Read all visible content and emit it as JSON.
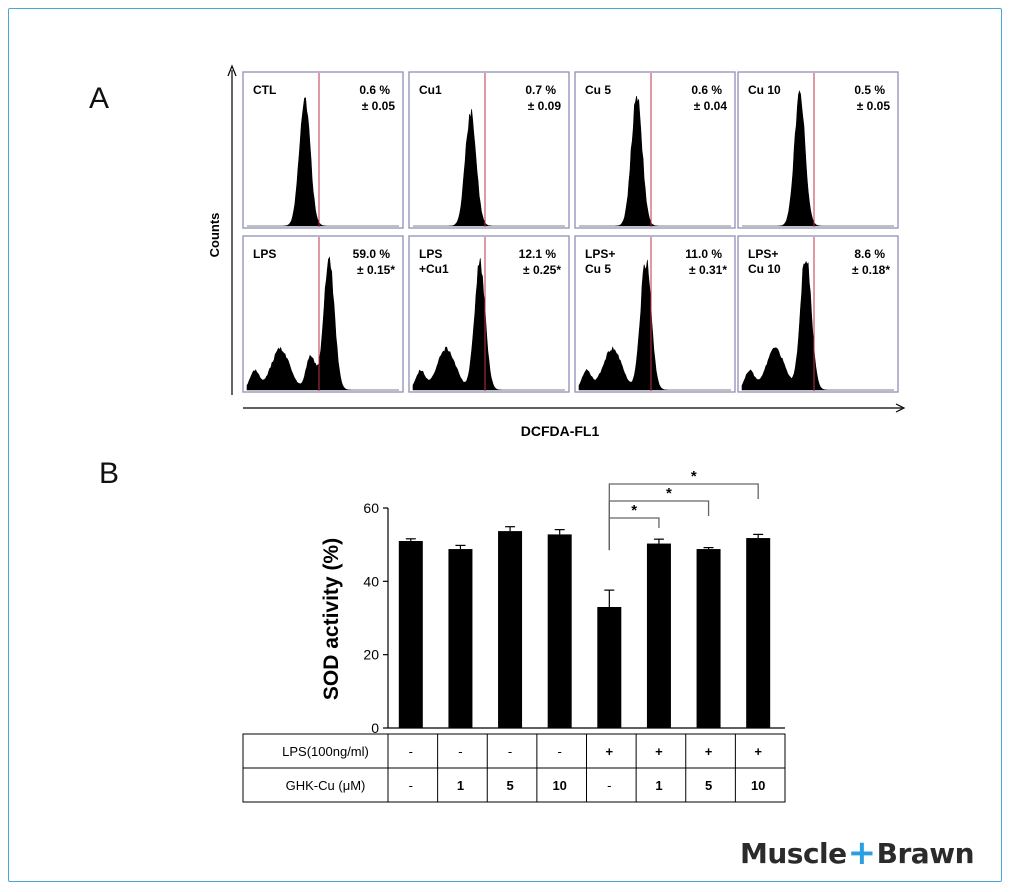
{
  "panels": {
    "a_label": "A",
    "b_label": "B"
  },
  "histograms": {
    "y_label": "Counts",
    "x_label": "DCFDA-FL1",
    "plots": [
      {
        "name": "CTL",
        "name2": "",
        "pct": "0.6 %",
        "err": "± 0.05",
        "peak_pos": 0.38,
        "peak_h": 0.82,
        "bimodal": false
      },
      {
        "name": "Cu1",
        "name2": "",
        "pct": "0.7 %",
        "err": "± 0.09",
        "peak_pos": 0.38,
        "peak_h": 0.72,
        "bimodal": false
      },
      {
        "name": "Cu 5",
        "name2": "",
        "pct": "0.6 %",
        "err": "± 0.04",
        "peak_pos": 0.38,
        "peak_h": 0.82,
        "bimodal": false
      },
      {
        "name": "Cu 10",
        "name2": "",
        "pct": "0.5 %",
        "err": "± 0.05",
        "peak_pos": 0.38,
        "peak_h": 0.82,
        "bimodal": false
      },
      {
        "name": "LPS",
        "name2": "",
        "pct": "59.0 %",
        "err": "± 0.15*",
        "peak_pos": 0.54,
        "peak_h": 0.82,
        "bimodal": true
      },
      {
        "name": "LPS",
        "name2": "+Cu1",
        "pct": "12.1 %",
        "err": "± 0.25*",
        "peak_pos": 0.44,
        "peak_h": 0.8,
        "bimodal": true
      },
      {
        "name": "LPS+",
        "name2": "Cu 5",
        "pct": "11.0 %",
        "err": "± 0.31*",
        "peak_pos": 0.44,
        "peak_h": 0.82,
        "bimodal": true
      },
      {
        "name": "LPS+",
        "name2": "Cu 10",
        "pct": "8.6 %",
        "err": "± 0.18*",
        "peak_pos": 0.42,
        "peak_h": 0.86,
        "bimodal": true
      }
    ]
  },
  "chart_data": {
    "type": "bar",
    "ylabel": "SOD activity (%)",
    "ylim": [
      0,
      60
    ],
    "yticks": [
      "0",
      "20",
      "40",
      "60"
    ],
    "values": [
      51,
      48.8,
      53.7,
      52.8,
      33,
      50.3,
      48.8,
      51.8
    ],
    "errors": [
      0.6,
      1.0,
      1.2,
      1.3,
      4.6,
      1.2,
      0.4,
      1.0
    ],
    "significance": [
      {
        "from": 4,
        "to": 5,
        "label": "*"
      },
      {
        "from": 4,
        "to": 6,
        "label": "*"
      },
      {
        "from": 4,
        "to": 7,
        "label": "*"
      }
    ],
    "table": {
      "rows": [
        {
          "label": "LPS(100ng/ml)",
          "cells": [
            "-",
            "-",
            "-",
            "-",
            "+",
            "+",
            "+",
            "+"
          ]
        },
        {
          "label": "GHK-Cu  (μM)",
          "cells": [
            "-",
            "1",
            "5",
            "10",
            "-",
            "1",
            "5",
            "10"
          ]
        }
      ]
    }
  },
  "logo": {
    "left": "Muscle",
    "plus": "+",
    "right": "Brawn"
  }
}
